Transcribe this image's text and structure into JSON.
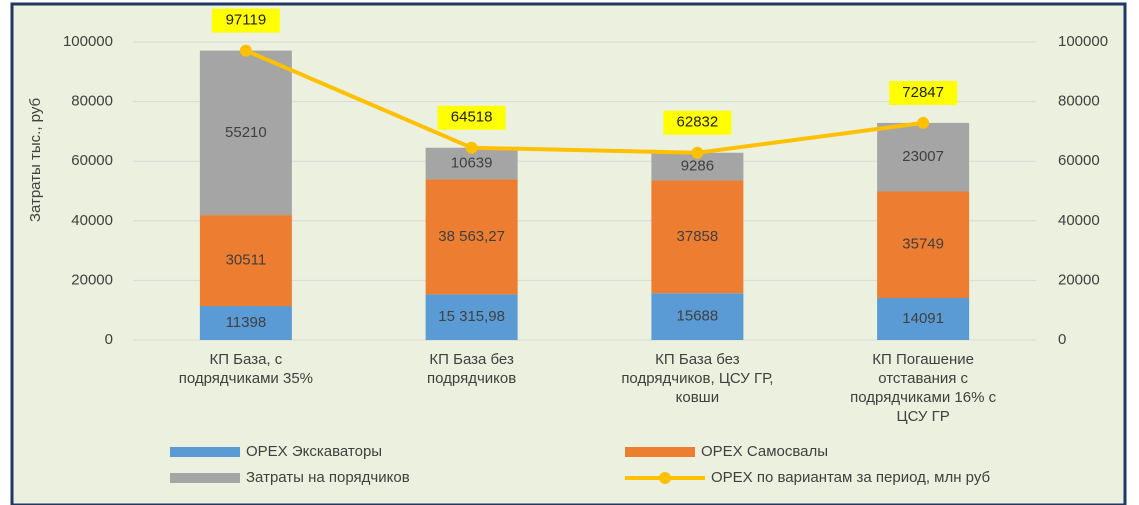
{
  "chart_data": {
    "type": "stacked-bar-line",
    "y_label": "Затраты тыс., руб",
    "categories": [
      "КП База, с\nподрядчиками 35%",
      "КП База без\nподрядчиков",
      "КП База без\nподрядчиков, ЦСУ ГР,\nковши",
      "КП Погашение\nотставания с\nподрядчиками 16% с\nЦСУ ГР"
    ],
    "series": [
      {
        "name": "OPEX Экскаваторы",
        "type": "bar",
        "color": "#5b9bd5",
        "values": [
          11398,
          15315.98,
          15688,
          14091
        ],
        "value_labels": [
          "11398",
          "15 315,98",
          "15688",
          "14091"
        ]
      },
      {
        "name": "OPEX Самосвалы",
        "type": "bar",
        "color": "#ed7d31",
        "values": [
          30511,
          38563.27,
          37858,
          35749
        ],
        "value_labels": [
          "30511",
          "38 563,27",
          "37858",
          "35749"
        ]
      },
      {
        "name": "Затраты на порядчиков",
        "type": "bar",
        "color": "#a5a5a5",
        "values": [
          55210,
          10639,
          9286,
          23007
        ]
      },
      {
        "name": "OPEX по вариантам за период, млн руб",
        "type": "line",
        "axis": "y2",
        "color": "#ffc000",
        "values": [
          97119,
          64518,
          62832,
          72847
        ]
      }
    ],
    "ylim": [
      0,
      100000
    ],
    "yticks": [
      0,
      20000,
      40000,
      60000,
      80000,
      100000
    ],
    "y2lim": [
      0,
      100000
    ],
    "y2ticks": [
      0,
      20000,
      40000,
      60000,
      80000,
      100000
    ],
    "grid": true
  }
}
